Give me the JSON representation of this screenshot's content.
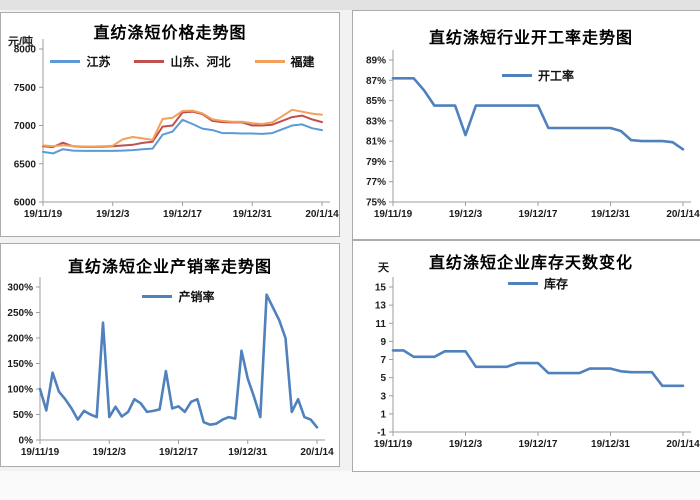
{
  "window": {
    "background": "#f2f2f2"
  },
  "chart_data": [
    {
      "type": "line",
      "title": "直纺涤短价格走势图",
      "unit_label": "元/吨",
      "x_tick_labels": [
        "19/11/19",
        "19/12/3",
        "19/12/17",
        "19/12/31",
        "20/1/14"
      ],
      "y_tick_labels": [
        "6000",
        "6500",
        "7000",
        "7500",
        "8000"
      ],
      "ylim": [
        6000,
        8000
      ],
      "grid": false,
      "legend_position": "top-center",
      "series": [
        {
          "name": "江苏",
          "color": "#5B9BD5",
          "values": [
            6655,
            6635,
            6690,
            6672,
            6668,
            6668,
            6668,
            6668,
            6672,
            6678,
            6690,
            6698,
            6880,
            6920,
            7075,
            7020,
            6960,
            6940,
            6900,
            6900,
            6895,
            6895,
            6890,
            6900,
            6950,
            7000,
            7015,
            6965,
            6940
          ]
        },
        {
          "name": "山东、河北",
          "color": "#C0504D",
          "values": [
            6730,
            6718,
            6775,
            6728,
            6720,
            6720,
            6722,
            6728,
            6738,
            6748,
            6772,
            6788,
            6985,
            7000,
            7170,
            7180,
            7150,
            7060,
            7045,
            7040,
            7040,
            7000,
            7000,
            7010,
            7060,
            7110,
            7130,
            7080,
            7045
          ]
        },
        {
          "name": "福建",
          "color": "#F2A05C",
          "values": [
            6740,
            6730,
            6742,
            6732,
            6726,
            6726,
            6730,
            6736,
            6820,
            6850,
            6832,
            6812,
            7085,
            7100,
            7190,
            7195,
            7160,
            7080,
            7060,
            7050,
            7050,
            7030,
            7020,
            7040,
            7120,
            7205,
            7180,
            7155,
            7140
          ]
        }
      ]
    },
    {
      "type": "line",
      "title": "直纺涤短行业开工率走势图",
      "unit_label": "",
      "x_tick_labels": [
        "19/11/19",
        "19/12/3",
        "19/12/17",
        "19/12/31",
        "20/1/14"
      ],
      "y_tick_labels": [
        "75%",
        "77%",
        "79%",
        "81%",
        "83%",
        "85%",
        "87%",
        "89%"
      ],
      "ylim": [
        75,
        89
      ],
      "grid": false,
      "legend_position": "top-center",
      "series": [
        {
          "name": "开工率",
          "color": "#4F81BD",
          "values": [
            87.2,
            87.2,
            87.2,
            86.0,
            84.5,
            84.5,
            84.5,
            81.6,
            84.5,
            84.5,
            84.5,
            84.5,
            84.5,
            84.5,
            84.5,
            82.3,
            82.3,
            82.3,
            82.3,
            82.3,
            82.3,
            82.3,
            82.0,
            81.1,
            81.0,
            81.0,
            81.0,
            80.9,
            80.2
          ]
        }
      ]
    },
    {
      "type": "line",
      "title": "直纺涤短企业产销率走势图",
      "unit_label": "",
      "x_tick_labels": [
        "19/11/19",
        "19/12/3",
        "19/12/17",
        "19/12/31",
        "20/1/14"
      ],
      "y_tick_labels": [
        "0%",
        "50%",
        "100%",
        "150%",
        "200%",
        "250%",
        "300%"
      ],
      "ylim": [
        0,
        300
      ],
      "grid": false,
      "legend_position": "top-center",
      "series": [
        {
          "name": "产销率",
          "color": "#4F81BD",
          "values": [
            100,
            58,
            132,
            95,
            80,
            62,
            40,
            57,
            50,
            45,
            230,
            45,
            65,
            46,
            55,
            80,
            72,
            55,
            57,
            60,
            135,
            62,
            66,
            55,
            75,
            80,
            35,
            30,
            32,
            40,
            45,
            42,
            175,
            120,
            85,
            45,
            285,
            260,
            235,
            200,
            55,
            80,
            45,
            40,
            25
          ]
        }
      ]
    },
    {
      "type": "line",
      "title": "直纺涤短企业库存天数变化",
      "unit_label": "天",
      "x_tick_labels": [
        "19/11/19",
        "19/12/3",
        "19/12/17",
        "19/12/31",
        "20/1/14"
      ],
      "y_tick_labels": [
        "-1",
        "1",
        "3",
        "5",
        "7",
        "9",
        "11",
        "13",
        "15"
      ],
      "ylim": [
        -1,
        15
      ],
      "grid": false,
      "legend_position": "top-center",
      "series": [
        {
          "name": "库存",
          "color": "#4F81BD",
          "values": [
            8.0,
            8.0,
            7.3,
            7.3,
            7.3,
            7.9,
            7.9,
            7.9,
            6.2,
            6.2,
            6.2,
            6.2,
            6.6,
            6.6,
            6.6,
            5.5,
            5.5,
            5.5,
            5.5,
            6.0,
            6.0,
            6.0,
            5.7,
            5.6,
            5.6,
            5.6,
            4.1,
            4.1,
            4.1
          ]
        }
      ]
    }
  ]
}
